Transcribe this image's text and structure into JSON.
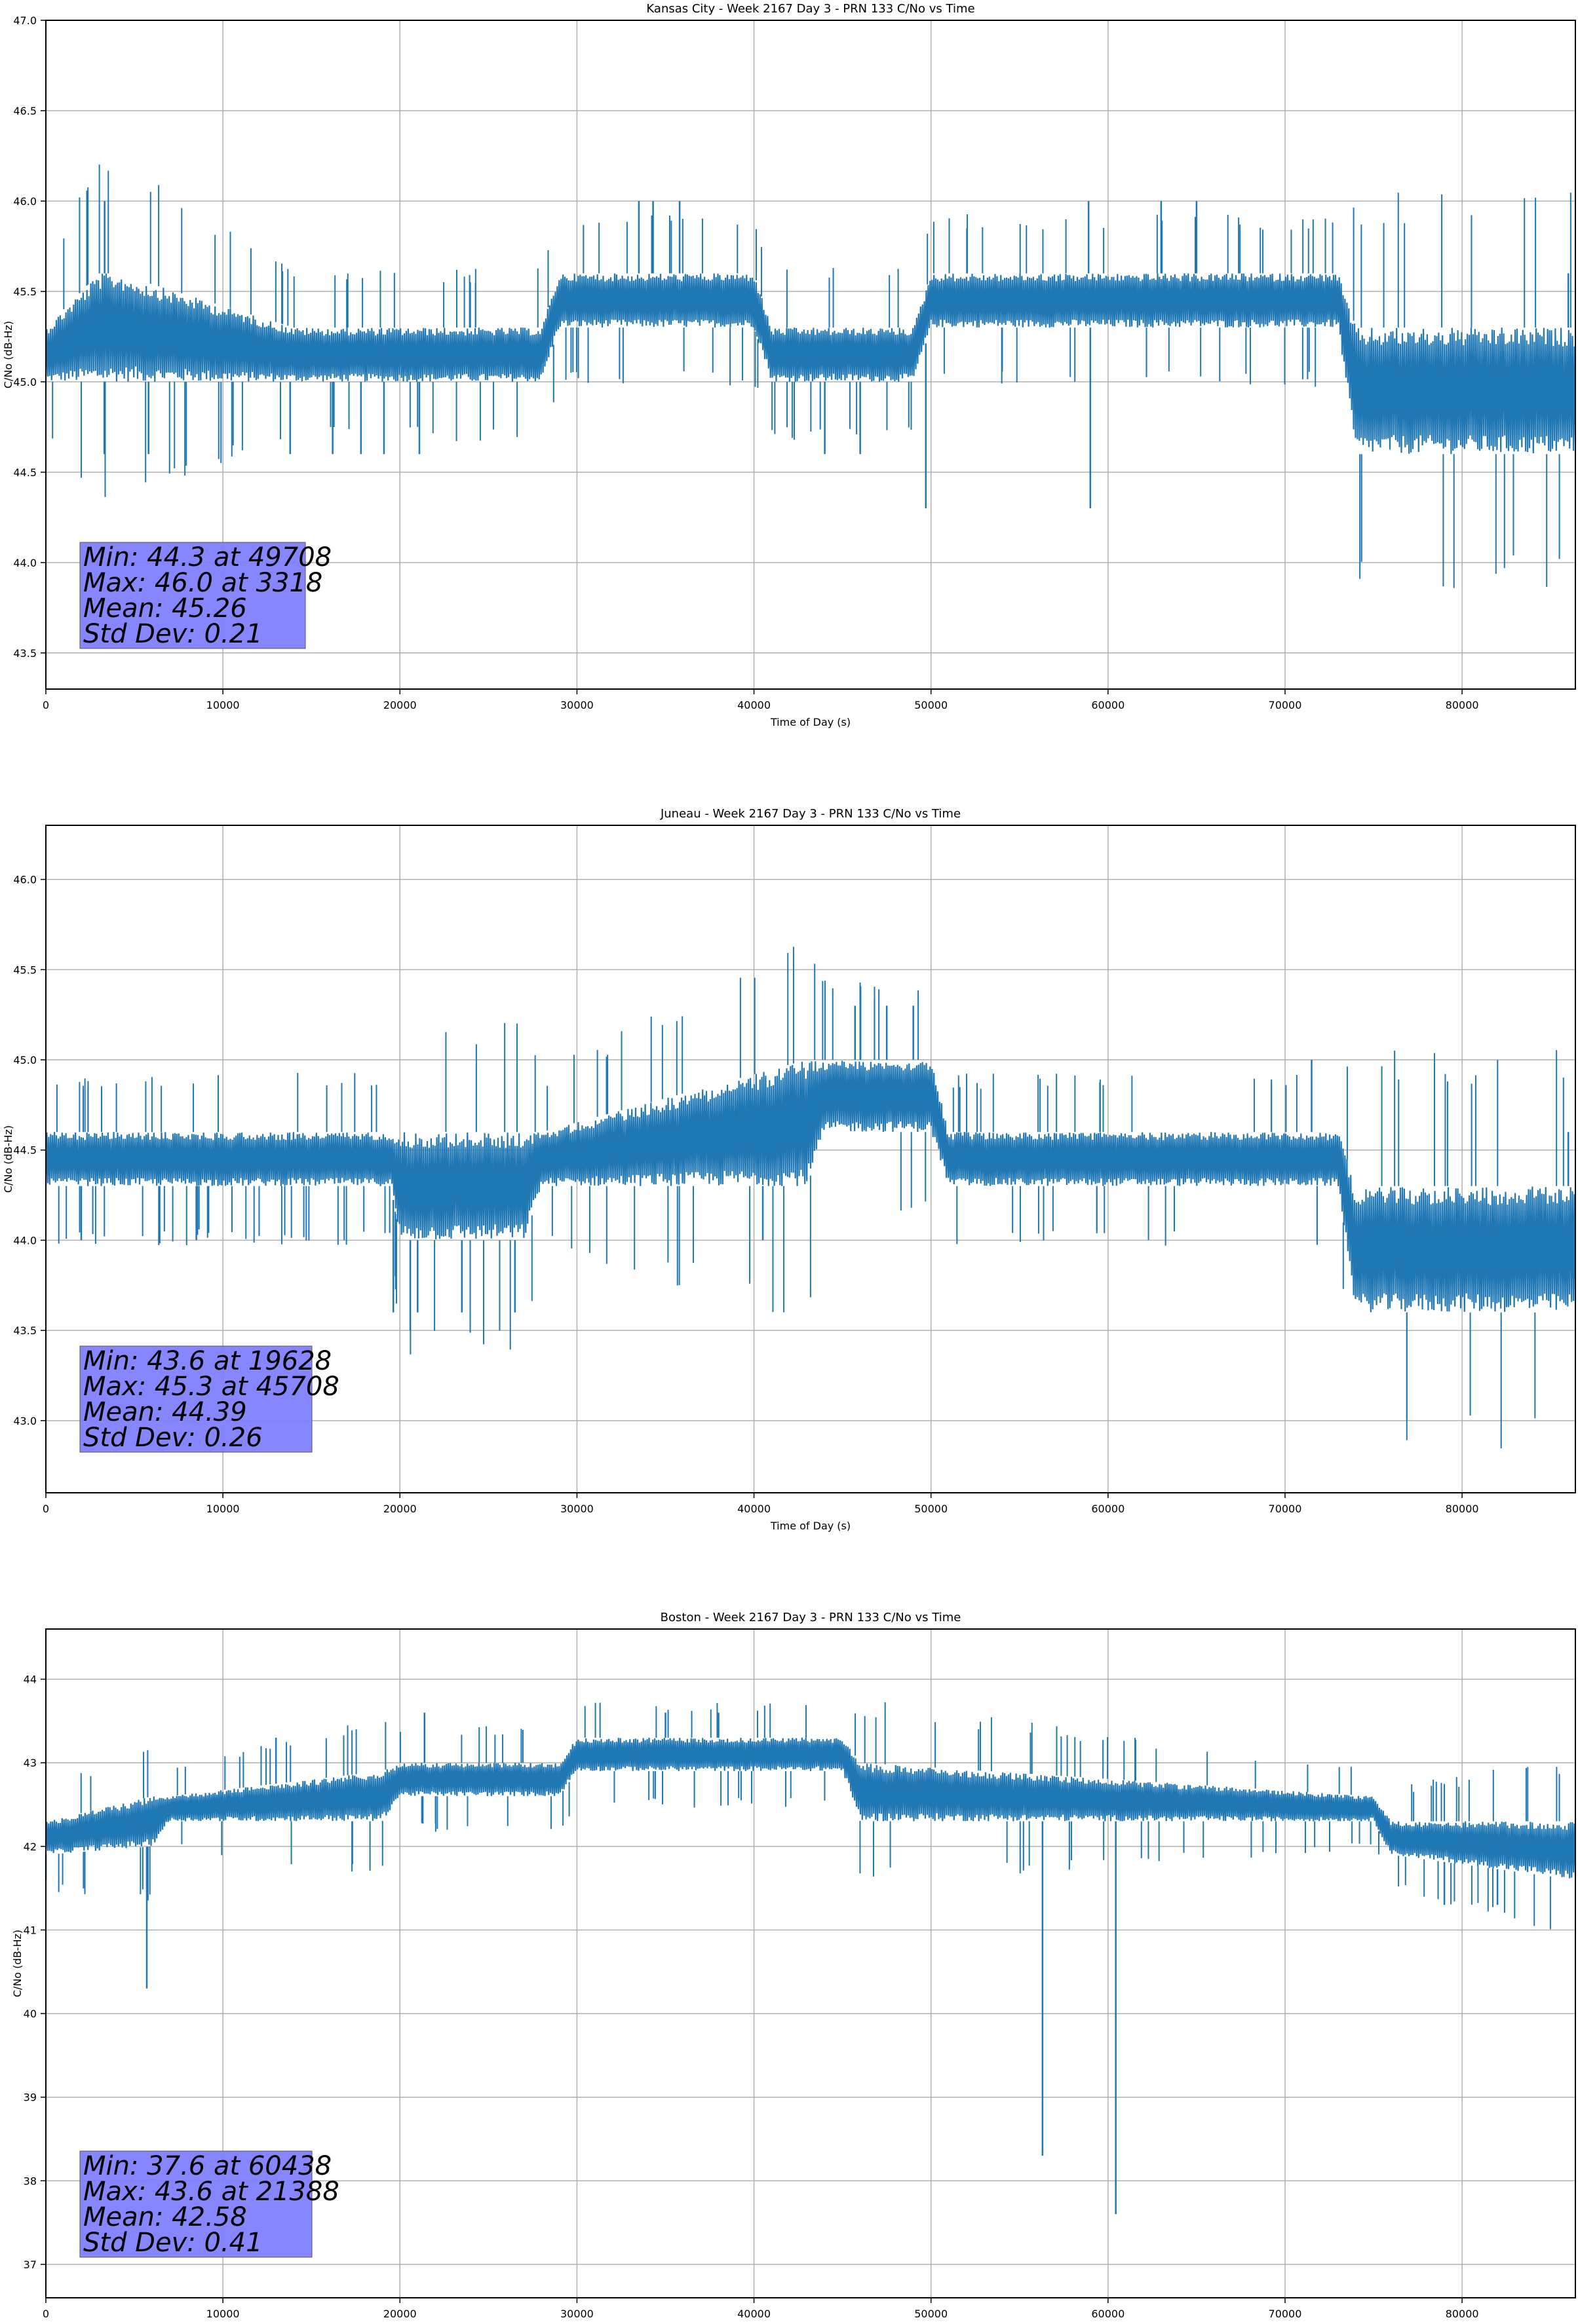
{
  "colors": {
    "series": "#1f77b4",
    "grid": "#b0b0b0",
    "axis": "#000000",
    "stats_box": "#8080ff"
  },
  "chart_data": [
    {
      "type": "line",
      "title": "Kansas City - Week 2167 Day 3 - PRN 133 C/No vs Time",
      "xlabel": "Time of Day (s)",
      "ylabel": "C/No (dB-Hz)",
      "xlim": [
        0,
        86400
      ],
      "ylim": [
        43.3,
        47.0
      ],
      "xticks": [
        "0",
        "10000",
        "20000",
        "30000",
        "40000",
        "50000",
        "60000",
        "70000",
        "80000"
      ],
      "yticks": [
        "43.5",
        "44.0",
        "44.5",
        "45.0",
        "45.5",
        "46.0",
        "46.5",
        "47.0"
      ],
      "grid": true,
      "stats": [
        "Min: 44.3 at 49708",
        "Max: 46.0 at 3318",
        "Mean: 45.26",
        "Std Dev: 0.21"
      ],
      "series": [
        {
          "x": [
            0,
            3000,
            4000,
            14000,
            15000,
            28000,
            29000,
            40000,
            41000,
            49000,
            50000,
            73000,
            74000,
            86400
          ],
          "lo": [
            45.0,
            45.0,
            45.0,
            45.0,
            45.0,
            45.0,
            45.3,
            45.3,
            45.0,
            45.0,
            45.3,
            45.3,
            44.6,
            44.6
          ],
          "hi": [
            45.3,
            45.6,
            45.6,
            45.3,
            45.3,
            45.3,
            45.6,
            45.6,
            45.3,
            45.3,
            45.6,
            45.6,
            45.3,
            45.3
          ],
          "spikes": [
            [
              3318,
              46.0
            ],
            [
              3300,
              44.6
            ],
            [
              5800,
              44.6
            ],
            [
              13800,
              44.6
            ],
            [
              16200,
              44.6
            ],
            [
              17800,
              44.6
            ],
            [
              19100,
              44.6
            ],
            [
              21100,
              44.6
            ],
            [
              33500,
              46.0
            ],
            [
              34300,
              46.0
            ],
            [
              35800,
              46.0
            ],
            [
              44000,
              44.6
            ],
            [
              46000,
              44.6
            ],
            [
              49708,
              44.3
            ],
            [
              58900,
              46.0
            ],
            [
              59000,
              44.3
            ],
            [
              63000,
              46.0
            ],
            [
              65000,
              46.0
            ],
            [
              86000,
              45.6
            ]
          ]
        }
      ]
    },
    {
      "type": "line",
      "title": "Juneau - Week 2167 Day 3 - PRN 133 C/No vs Time",
      "xlabel": "Time of Day (s)",
      "ylabel": "C/No (dB-Hz)",
      "xlim": [
        0,
        86400
      ],
      "ylim": [
        42.6,
        46.3
      ],
      "xticks": [
        "0",
        "10000",
        "20000",
        "30000",
        "40000",
        "50000",
        "60000",
        "70000",
        "80000"
      ],
      "yticks": [
        "43.0",
        "43.5",
        "44.0",
        "44.5",
        "45.0",
        "45.5",
        "46.0"
      ],
      "grid": true,
      "stats": [
        "Min: 43.6 at 19628",
        "Max: 45.3 at 45708",
        "Mean: 44.39",
        "Std Dev: 0.26"
      ],
      "series": [
        {
          "x": [
            0,
            19500,
            20000,
            27000,
            28000,
            43000,
            44000,
            50000,
            51000,
            73000,
            74000,
            86400
          ],
          "lo": [
            44.3,
            44.3,
            44.0,
            44.0,
            44.3,
            44.3,
            44.6,
            44.6,
            44.3,
            44.3,
            43.6,
            43.6
          ],
          "hi": [
            44.6,
            44.6,
            44.6,
            44.6,
            44.6,
            45.0,
            45.0,
            45.0,
            44.6,
            44.6,
            44.3,
            44.3
          ],
          "spikes": [
            [
              19628,
              43.6
            ],
            [
              21000,
              43.6
            ],
            [
              23500,
              43.6
            ],
            [
              26500,
              43.6
            ],
            [
              45708,
              45.3
            ],
            [
              47500,
              45.3
            ],
            [
              49000,
              45.3
            ],
            [
              2000,
              44.0
            ],
            [
              8500,
              44.0
            ],
            [
              40500,
              44.0
            ],
            [
              71500,
              45.0
            ],
            [
              86000,
              44.6
            ]
          ]
        }
      ]
    },
    {
      "type": "line",
      "title": "Boston - Week 2167 Day 3 - PRN 133 C/No vs Time",
      "xlabel": "Time of Day (s)",
      "ylabel": "C/No (dB-Hz)",
      "xlim": [
        0,
        86400
      ],
      "ylim": [
        36.6,
        44.6
      ],
      "xticks": [
        "0",
        "10000",
        "20000",
        "30000",
        "40000",
        "50000",
        "60000",
        "70000",
        "80000"
      ],
      "yticks": [
        "37",
        "38",
        "39",
        "40",
        "41",
        "42",
        "43",
        "44"
      ],
      "grid": true,
      "stats": [
        "Min: 37.6 at 60438",
        "Max: 43.6 at 21388",
        "Mean: 42.58",
        "Std Dev: 0.41"
      ],
      "series": [
        {
          "x": [
            0,
            6000,
            7000,
            19000,
            20000,
            29000,
            30000,
            45000,
            46000,
            75000,
            76000,
            86400
          ],
          "lo": [
            41.9,
            42.0,
            42.3,
            42.3,
            42.6,
            42.6,
            42.9,
            42.9,
            42.3,
            42.3,
            41.9,
            41.6
          ],
          "hi": [
            42.3,
            42.6,
            42.6,
            42.9,
            43.0,
            43.0,
            43.3,
            43.3,
            43.0,
            42.6,
            42.3,
            42.3
          ],
          "spikes": [
            [
              5700,
              40.3
            ],
            [
              21388,
              43.6
            ],
            [
              35000,
              43.6
            ],
            [
              38000,
              43.6
            ],
            [
              56300,
              38.3
            ],
            [
              60438,
              37.6
            ],
            [
              79000,
              41.3
            ],
            [
              82000,
              41.3
            ],
            [
              13000,
              43.3
            ],
            [
              0,
              41.6
            ]
          ]
        }
      ]
    }
  ]
}
